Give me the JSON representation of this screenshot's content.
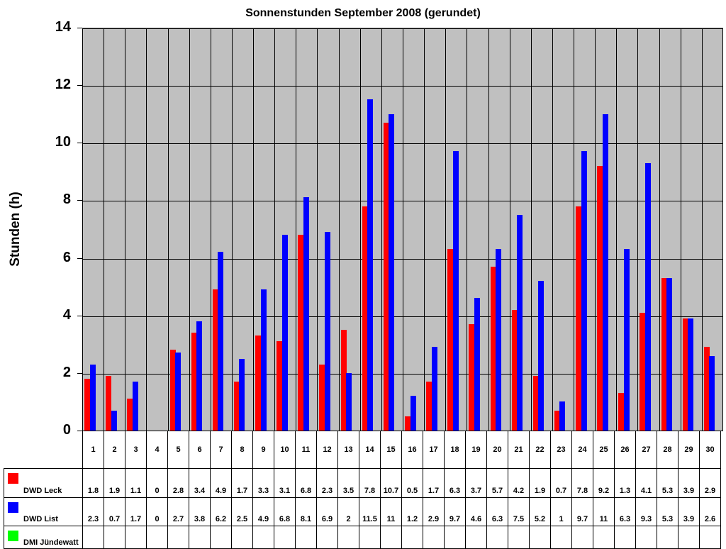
{
  "chart_data": {
    "type": "bar",
    "title": "Sonnenstunden September 2008 (gerundet)",
    "xlabel": "",
    "ylabel": "Stunden (h)",
    "ylim": [
      0,
      14
    ],
    "yticks": [
      "0",
      "2",
      "4",
      "6",
      "8",
      "10",
      "12",
      "14"
    ],
    "grid": true,
    "legend_position": "data-table-left",
    "categories": [
      "1",
      "2",
      "3",
      "4",
      "5",
      "6",
      "7",
      "8",
      "9",
      "10",
      "11",
      "12",
      "13",
      "14",
      "15",
      "16",
      "17",
      "18",
      "19",
      "20",
      "21",
      "22",
      "23",
      "24",
      "25",
      "26",
      "27",
      "28",
      "29",
      "30"
    ],
    "series": [
      {
        "name": "DWD Leck",
        "color": "#ff0000",
        "values": [
          1.8,
          1.9,
          1.1,
          0,
          2.8,
          3.4,
          4.9,
          1.7,
          3.3,
          3.1,
          6.8,
          2.3,
          3.5,
          7.8,
          10.7,
          0.5,
          1.7,
          6.3,
          3.7,
          5.7,
          4.2,
          1.9,
          0.7,
          7.8,
          9.2,
          1.3,
          4.1,
          5.3,
          3.9,
          2.9
        ]
      },
      {
        "name": "DWD List",
        "color": "#0000ff",
        "values": [
          2.3,
          0.7,
          1.7,
          0,
          2.7,
          3.8,
          6.2,
          2.5,
          4.9,
          6.8,
          8.1,
          6.9,
          2,
          11.5,
          11,
          1.2,
          2.9,
          9.7,
          4.6,
          6.3,
          7.5,
          5.2,
          1,
          9.7,
          11,
          6.3,
          9.3,
          5.3,
          3.9,
          2.6
        ]
      },
      {
        "name": "DMI Jündewatt",
        "color": "#00ff00",
        "values": [
          null,
          null,
          null,
          null,
          null,
          null,
          null,
          null,
          null,
          null,
          null,
          null,
          null,
          null,
          null,
          null,
          null,
          null,
          null,
          null,
          null,
          null,
          null,
          null,
          null,
          null,
          null,
          null,
          null,
          null
        ]
      }
    ]
  },
  "colors": {
    "plot_background": "#c0c0c0",
    "leck": "#ff0000",
    "list": "#0000ff",
    "dmi": "#00ff00"
  }
}
